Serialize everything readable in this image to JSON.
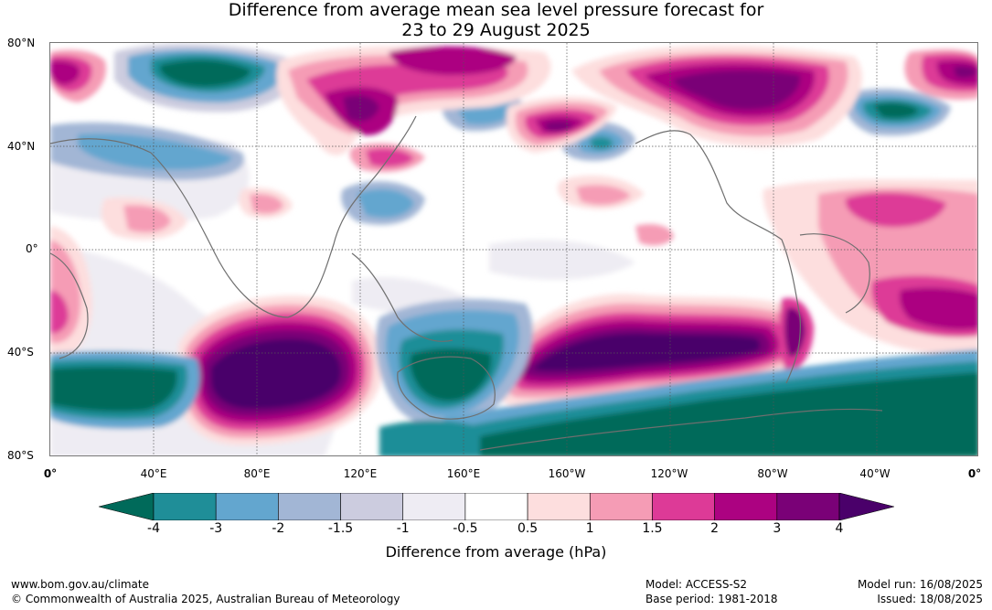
{
  "title": {
    "line1": "Difference from average mean sea level pressure forecast for",
    "line2": "23 to 29 August 2025"
  },
  "map": {
    "lat_labels": [
      "80°N",
      "40°N",
      "0°",
      "40°S",
      "80°S"
    ],
    "lon_labels": [
      "0°",
      "40°E",
      "80°E",
      "120°E",
      "160°E",
      "160°W",
      "120°W",
      "80°W",
      "40°W",
      "0°"
    ]
  },
  "colorbar": {
    "ticks": [
      "-4",
      "-3",
      "-2",
      "-1.5",
      "-1",
      "-0.5",
      "0.5",
      "1",
      "1.5",
      "2",
      "3",
      "4"
    ],
    "colors": [
      "#006a5a",
      "#1f8e98",
      "#63a6cf",
      "#a2b6d5",
      "#ccccdf",
      "#eeecf3",
      "#ffffff",
      "#fddede",
      "#f59cb5",
      "#dd3a97",
      "#ac0281",
      "#7a0177",
      "#4a006a"
    ],
    "label": "Difference from average (hPa)"
  },
  "footer": {
    "website": "www.bom.gov.au/climate",
    "copyright": "© Commonwealth of Australia 2025, Australian Bureau of Meteorology",
    "model": "Model: ACCESS-S2",
    "base_period": "Base period: 1981-2018",
    "model_run": "Model run: 16/08/2025",
    "issued": "Issued: 18/08/2025"
  }
}
